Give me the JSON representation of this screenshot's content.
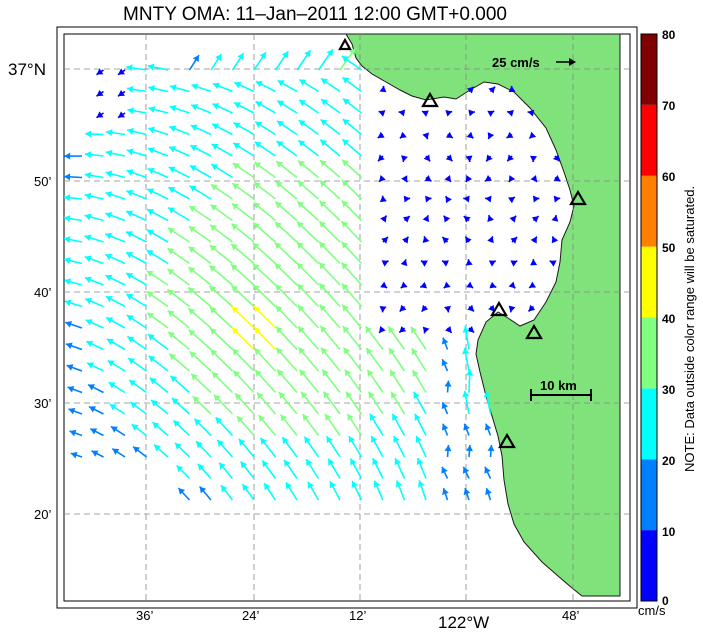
{
  "title": "MNTY OMA: 11–Jan–2011 12:00 GMT+0.000",
  "map": {
    "lat_labels": [
      "37°N",
      "50’",
      "40’",
      "30’",
      "20’"
    ],
    "lon_labels": [
      "36’",
      "24’",
      "12’",
      "122°W",
      "48’"
    ],
    "land_color": "#80e27a",
    "scale_arrow_label": "25 cm/s",
    "scale_bar_label": "10 km",
    "stations": 6
  },
  "colorbar": {
    "ticks": [
      "80",
      "70",
      "60",
      "50",
      "40",
      "30",
      "20",
      "10",
      "0"
    ],
    "unit": "cm/s",
    "note": "NOTE: Data outside color range will be saturated.",
    "colors": [
      "#0000ff",
      "#0080ff",
      "#00ffff",
      "#80ff80",
      "#ffff00",
      "#ff8000",
      "#ff0000",
      "#800000"
    ]
  }
}
